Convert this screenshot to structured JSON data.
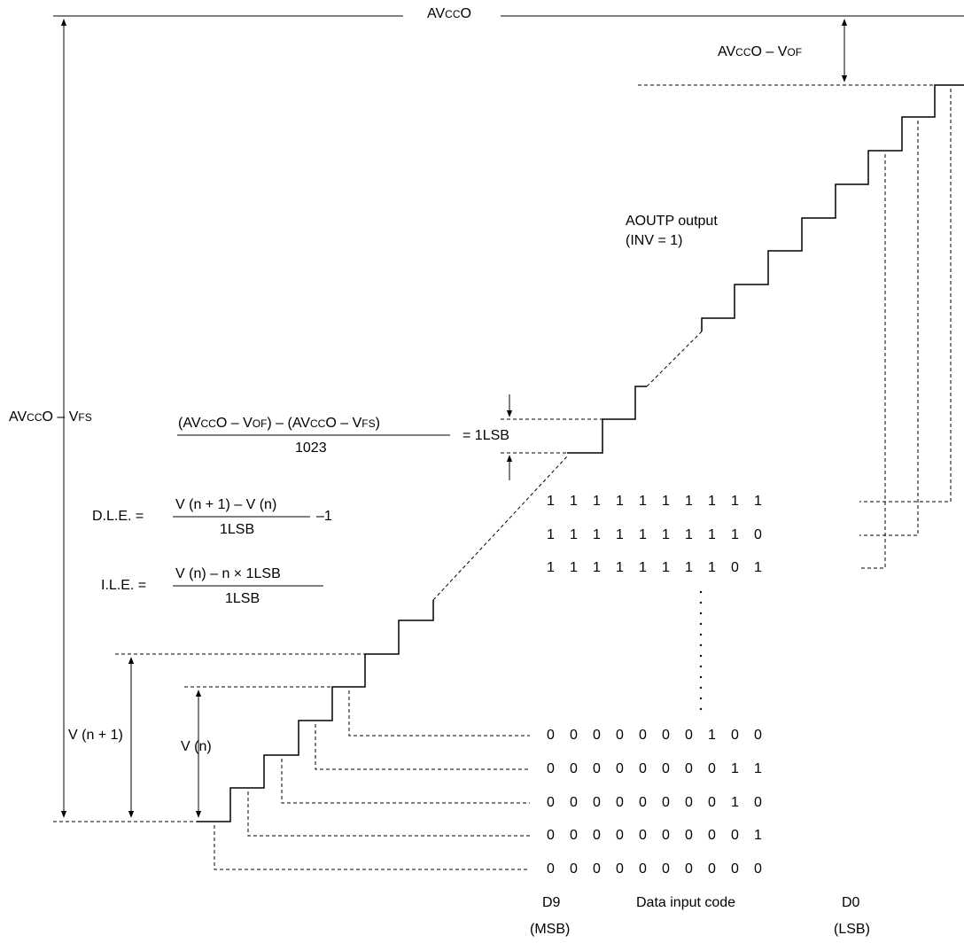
{
  "top_reference": {
    "prefix": "AV",
    "sub": "CC",
    "suffix": "O"
  },
  "offset_label": {
    "prefix": "AV",
    "sub": "CC",
    "mid": "O – V",
    "sub2": "OF"
  },
  "fullscale_label": {
    "prefix": "AV",
    "sub": "CC",
    "mid": "O – V",
    "sub2": "FS"
  },
  "output_label": {
    "line1": "AOUTP output",
    "line2": "(INV = 1)"
  },
  "lsb_formula": {
    "num_a": "(AV",
    "num_a_sub": "CC",
    "num_b": "O – V",
    "num_b_sub": "OF",
    "num_c": ") – (AV",
    "num_c_sub": "CC",
    "num_d": "O – V",
    "num_d_sub": "FS",
    "num_e": ")",
    "den": "1023",
    "result": "= 1LSB"
  },
  "dle_formula": {
    "lhs": "D.L.E. =",
    "num": "V (n + 1) – V (n)",
    "den": "1LSB",
    "tail": "–1"
  },
  "ile_formula": {
    "lhs": "I.L.E. =",
    "num": "V (n) – n × 1LSB",
    "den": "1LSB"
  },
  "vn1_label": "V (n + 1)",
  "vn_label": "V (n)",
  "codes_top": [
    [
      "1",
      "1",
      "1",
      "1",
      "1",
      "1",
      "1",
      "1",
      "1",
      "1"
    ],
    [
      "1",
      "1",
      "1",
      "1",
      "1",
      "1",
      "1",
      "1",
      "1",
      "0"
    ],
    [
      "1",
      "1",
      "1",
      "1",
      "1",
      "1",
      "1",
      "1",
      "0",
      "1"
    ]
  ],
  "codes_bottom": [
    [
      "0",
      "0",
      "0",
      "0",
      "0",
      "0",
      "0",
      "1",
      "0",
      "0"
    ],
    [
      "0",
      "0",
      "0",
      "0",
      "0",
      "0",
      "0",
      "0",
      "1",
      "1"
    ],
    [
      "0",
      "0",
      "0",
      "0",
      "0",
      "0",
      "0",
      "0",
      "1",
      "0"
    ],
    [
      "0",
      "0",
      "0",
      "0",
      "0",
      "0",
      "0",
      "0",
      "0",
      "1"
    ],
    [
      "0",
      "0",
      "0",
      "0",
      "0",
      "0",
      "0",
      "0",
      "0",
      "0"
    ]
  ],
  "bit_labels": {
    "d9": "D9",
    "msb": "(MSB)",
    "data": "Data input code",
    "d0": "D0",
    "lsb": "(LSB)"
  }
}
